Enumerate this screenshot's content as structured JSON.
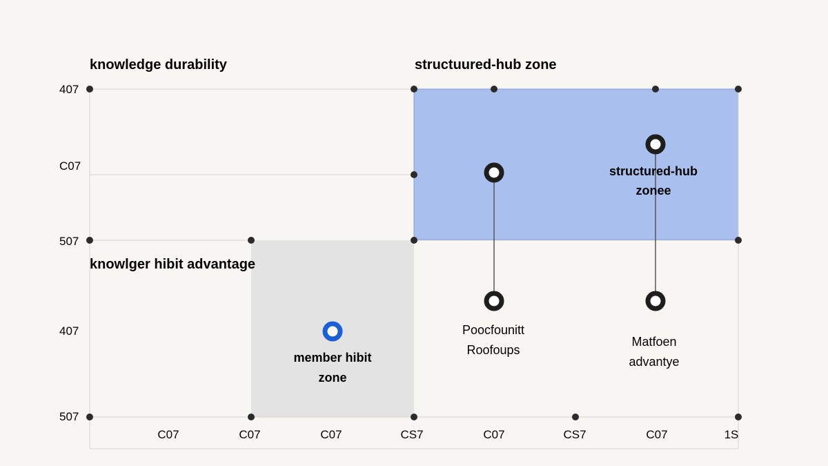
{
  "headings": {
    "top_left": "knowledge durability",
    "top_right": "structuured-hub zone",
    "mid_left": "knowlger hibit advantage"
  },
  "y_ticks": [
    "407",
    "C07",
    "507",
    "407",
    "507"
  ],
  "x_ticks": [
    "C07",
    "C07",
    "C07",
    "CS7",
    "C07",
    "CS7",
    "C07",
    "1S"
  ],
  "zones": {
    "member": {
      "label_line1": "member hibit",
      "label_line2": "zone"
    },
    "hub": {
      "label_line1": "structured-hub",
      "label_line2": "zonee"
    }
  },
  "points": {
    "left": {
      "label_line1": "Poocfounitt",
      "label_line2": "Roofoups"
    },
    "right": {
      "label_line1": "Matfoen",
      "label_line2": "advantye"
    }
  },
  "colors": {
    "background": "#f8f6f2",
    "hub_fill": "#a9c0ee",
    "hub_stroke": "#7f9ddc",
    "member_fill": "#e3e3e3",
    "grid": "#d4d4d4",
    "dot": "#2b2b2b",
    "accent": "#1a5fd6"
  }
}
